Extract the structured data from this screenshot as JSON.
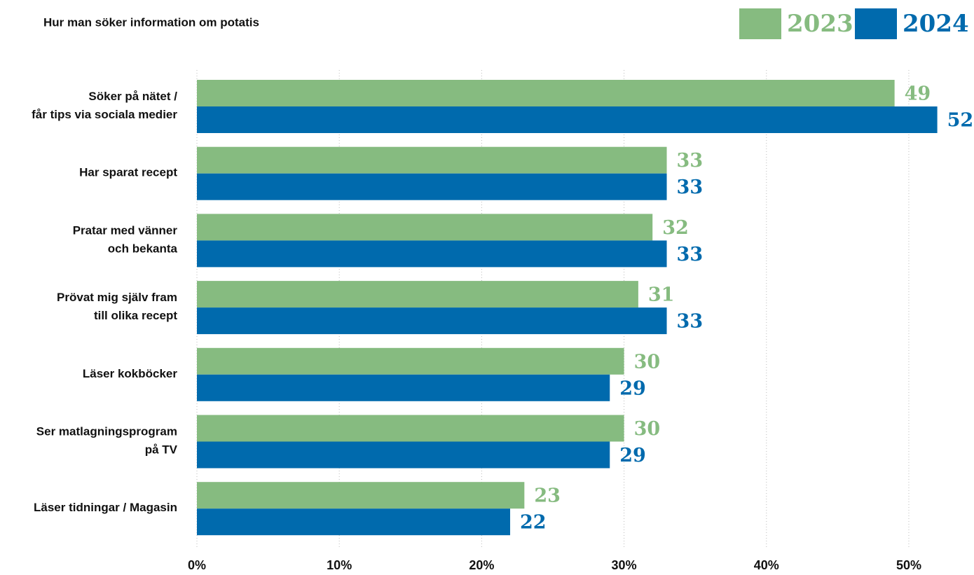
{
  "chart_data": {
    "type": "hbar",
    "title": "Hur man söker information om potatis",
    "categories": [
      [
        "Söker på nätet /",
        "får tips via sociala medier"
      ],
      [
        "Har sparat recept"
      ],
      [
        "Pratar med vänner",
        "och bekanta"
      ],
      [
        "Prövat mig själv fram",
        "till olika recept"
      ],
      [
        "Läser kokböcker"
      ],
      [
        "Ser matlagningsprogram",
        "på TV"
      ],
      [
        "Läser tidningar / Magasin"
      ]
    ],
    "series": [
      {
        "name": "2023",
        "color": "#86bb80",
        "values": [
          49,
          33,
          32,
          31,
          30,
          30,
          23
        ]
      },
      {
        "name": "2024",
        "color": "#006aad",
        "values": [
          52,
          33,
          33,
          33,
          29,
          29,
          22
        ]
      }
    ],
    "xlim": [
      0,
      54.5
    ],
    "xticks": [
      {
        "value": 0,
        "label": "0%"
      },
      {
        "value": 10,
        "label": "10%"
      },
      {
        "value": 20,
        "label": "20%"
      },
      {
        "value": 30,
        "label": "30%"
      },
      {
        "value": 40,
        "label": "40%"
      },
      {
        "value": 50,
        "label": "50%"
      }
    ],
    "grid": true,
    "legend": "top-right"
  }
}
